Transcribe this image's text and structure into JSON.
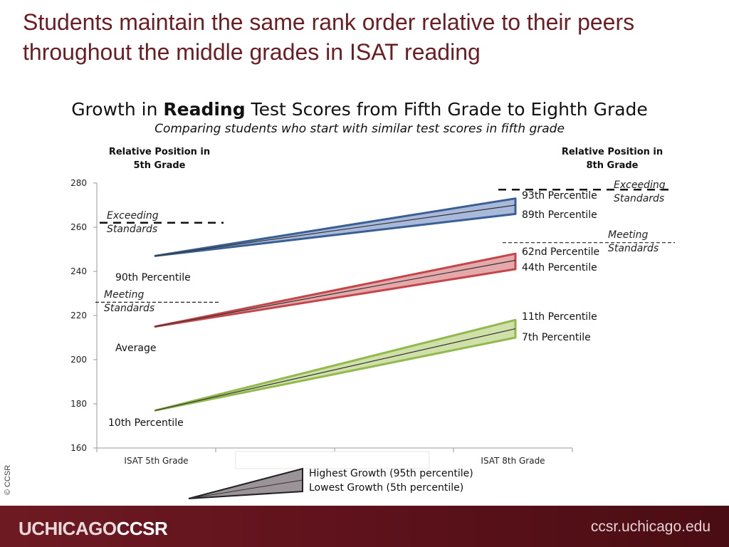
{
  "slide": {
    "title": "Students maintain the same rank order relative to their peers throughout the middle grades in ISAT reading",
    "copyright": "© CCSR",
    "footer_logo_a": "UCHICAGO",
    "footer_logo_b": "CCSR",
    "footer_url": "ccsr.uchicago.edu"
  },
  "chart_data": {
    "type": "area",
    "title_pre": "Growth in ",
    "title_bold": "Reading",
    "title_post": " Test Scores from Fifth Grade to Eighth Grade",
    "subtitle": "Comparing students who start with similar test scores in fifth grade",
    "left_header": [
      "Relative Position in",
      "5th Grade"
    ],
    "right_header": [
      "Relative Position in",
      "8th Grade"
    ],
    "categories": [
      "ISAT 5th Grade",
      "",
      "",
      "ISAT 8th Grade"
    ],
    "ylim": [
      160,
      280
    ],
    "yticks": [
      160,
      180,
      200,
      220,
      240,
      260,
      280
    ],
    "series": [
      {
        "name": "90th Percentile",
        "color": "#3a5f93",
        "fill": "#a8b9dc",
        "start": 247,
        "high": 273,
        "mid": 270,
        "low": 266,
        "high_label": "93th Percentile",
        "low_label": "89th Percentile"
      },
      {
        "name": "Average",
        "color": "#c3464b",
        "fill": "#e6a9ab",
        "start": 215,
        "high": 248,
        "mid": 245,
        "low": 241,
        "high_label": "62nd Percentile",
        "low_label": "44th Percentile"
      },
      {
        "name": "10th Percentile",
        "color": "#92b84e",
        "fill": "#cfe0a8",
        "start": 177,
        "high": 218,
        "mid": 214,
        "low": 210,
        "high_label": "11th Percentile",
        "low_label": "7th Percentile"
      }
    ],
    "standards": {
      "left": [
        {
          "label": "Exceeding",
          "label2": "Standards",
          "value": 262,
          "style": "bold-dash"
        },
        {
          "label": "Meeting",
          "label2": "Standards",
          "value": 226,
          "style": "thin-dash"
        }
      ],
      "right": [
        {
          "label": "Exceeding",
          "label2": "Standards",
          "value": 277,
          "style": "bold-dash"
        },
        {
          "label": "Meeting",
          "label2": "Standards",
          "value": 253,
          "style": "thin-dash"
        }
      ]
    },
    "legend": {
      "high": "Highest Growth (95th percentile)",
      "low": "Lowest Growth (5th percentile)"
    }
  }
}
